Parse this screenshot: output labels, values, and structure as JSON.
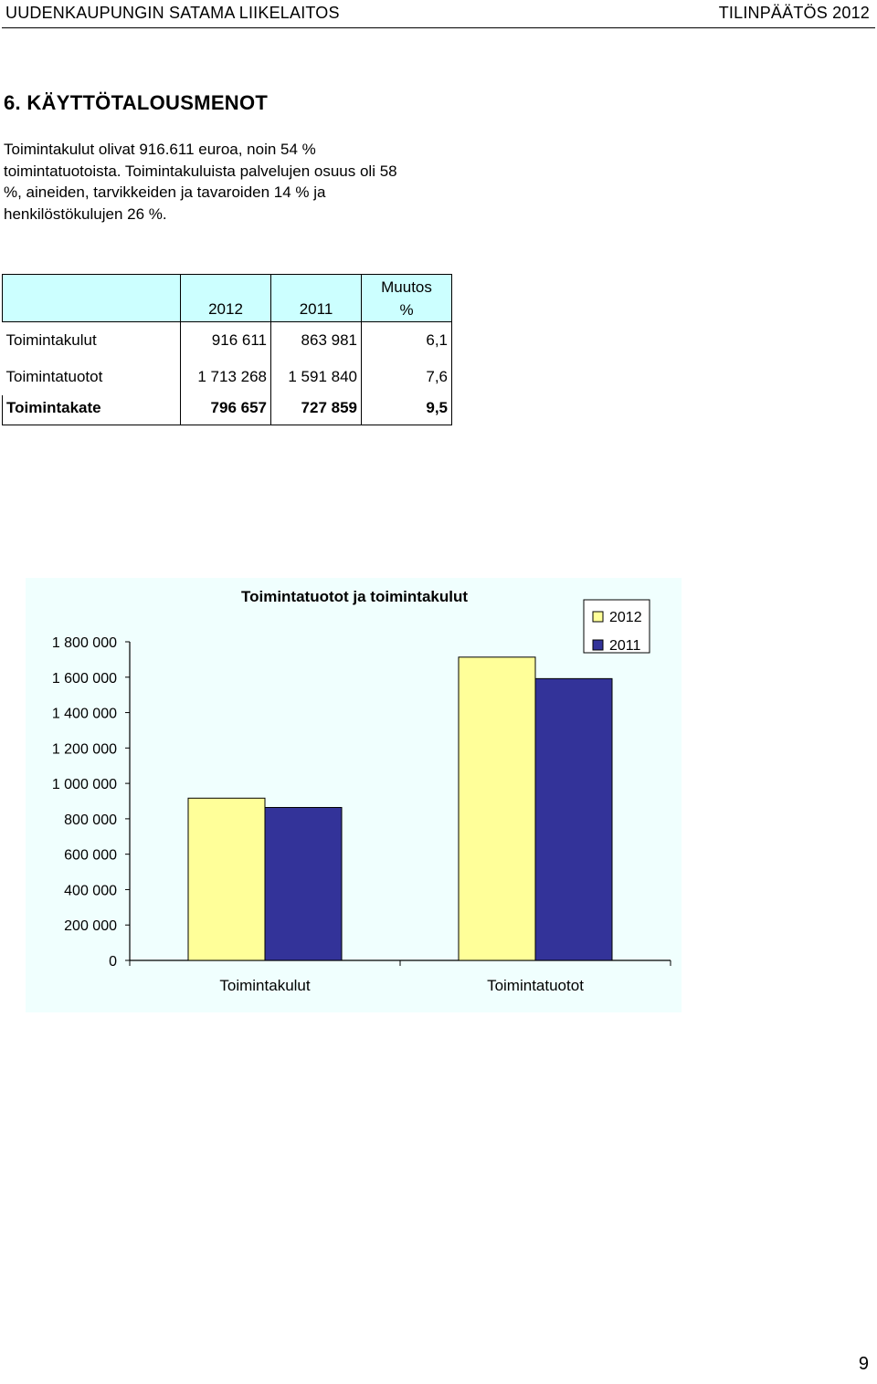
{
  "header": {
    "left": "UUDENKAUPUNGIN SATAMA LIIKELAITOS",
    "right": "TILINPÄÄTÖS 2012"
  },
  "section": {
    "title": "6. KÄYTTÖTALOUSMENOT",
    "paragraph": "Toimintakulut olivat 916.611 euroa, noin 54 % toimintatuotoista. Toimintakuluista palvelujen osuus oli 58 %, aineiden, tarvikkeiden ja tavaroiden 14 % ja henkilöstökulujen 26 %."
  },
  "table": {
    "headers": [
      "",
      "2012",
      "2011",
      "Muutos\n%"
    ],
    "header_change_line1": "Muutos",
    "header_change_line2": "%",
    "rows": [
      {
        "label": "Toimintakulut",
        "y2012": "916 611",
        "y2011": "863 981",
        "change": "6,1"
      },
      {
        "label": "Toimintatuotot",
        "y2012": "1 713 268",
        "y2011": "1 591 840",
        "change": "7,6"
      },
      {
        "label": "Toimintakate",
        "y2012": "796 657",
        "y2011": "727 859",
        "change": "9,5"
      }
    ]
  },
  "chart_data": {
    "type": "bar",
    "title": "Toimintatuotot ja toimintakulut",
    "categories": [
      "Toimintakulut",
      "Toimintatuotot"
    ],
    "series": [
      {
        "name": "2012",
        "values": [
          916611,
          1713268
        ],
        "color": "#ffff99"
      },
      {
        "name": "2011",
        "values": [
          863981,
          1591840
        ],
        "color": "#333399"
      }
    ],
    "yticks": [
      "0",
      "200 000",
      "400 000",
      "600 000",
      "800 000",
      "1 000 000",
      "1 200 000",
      "1 400 000",
      "1 600 000",
      "1 800 000"
    ],
    "ylim": [
      0,
      1800000
    ],
    "xlabel": "",
    "ylabel": "",
    "grid": false,
    "legend": "top-right",
    "background": "#f0fffe"
  },
  "page_number": "9"
}
